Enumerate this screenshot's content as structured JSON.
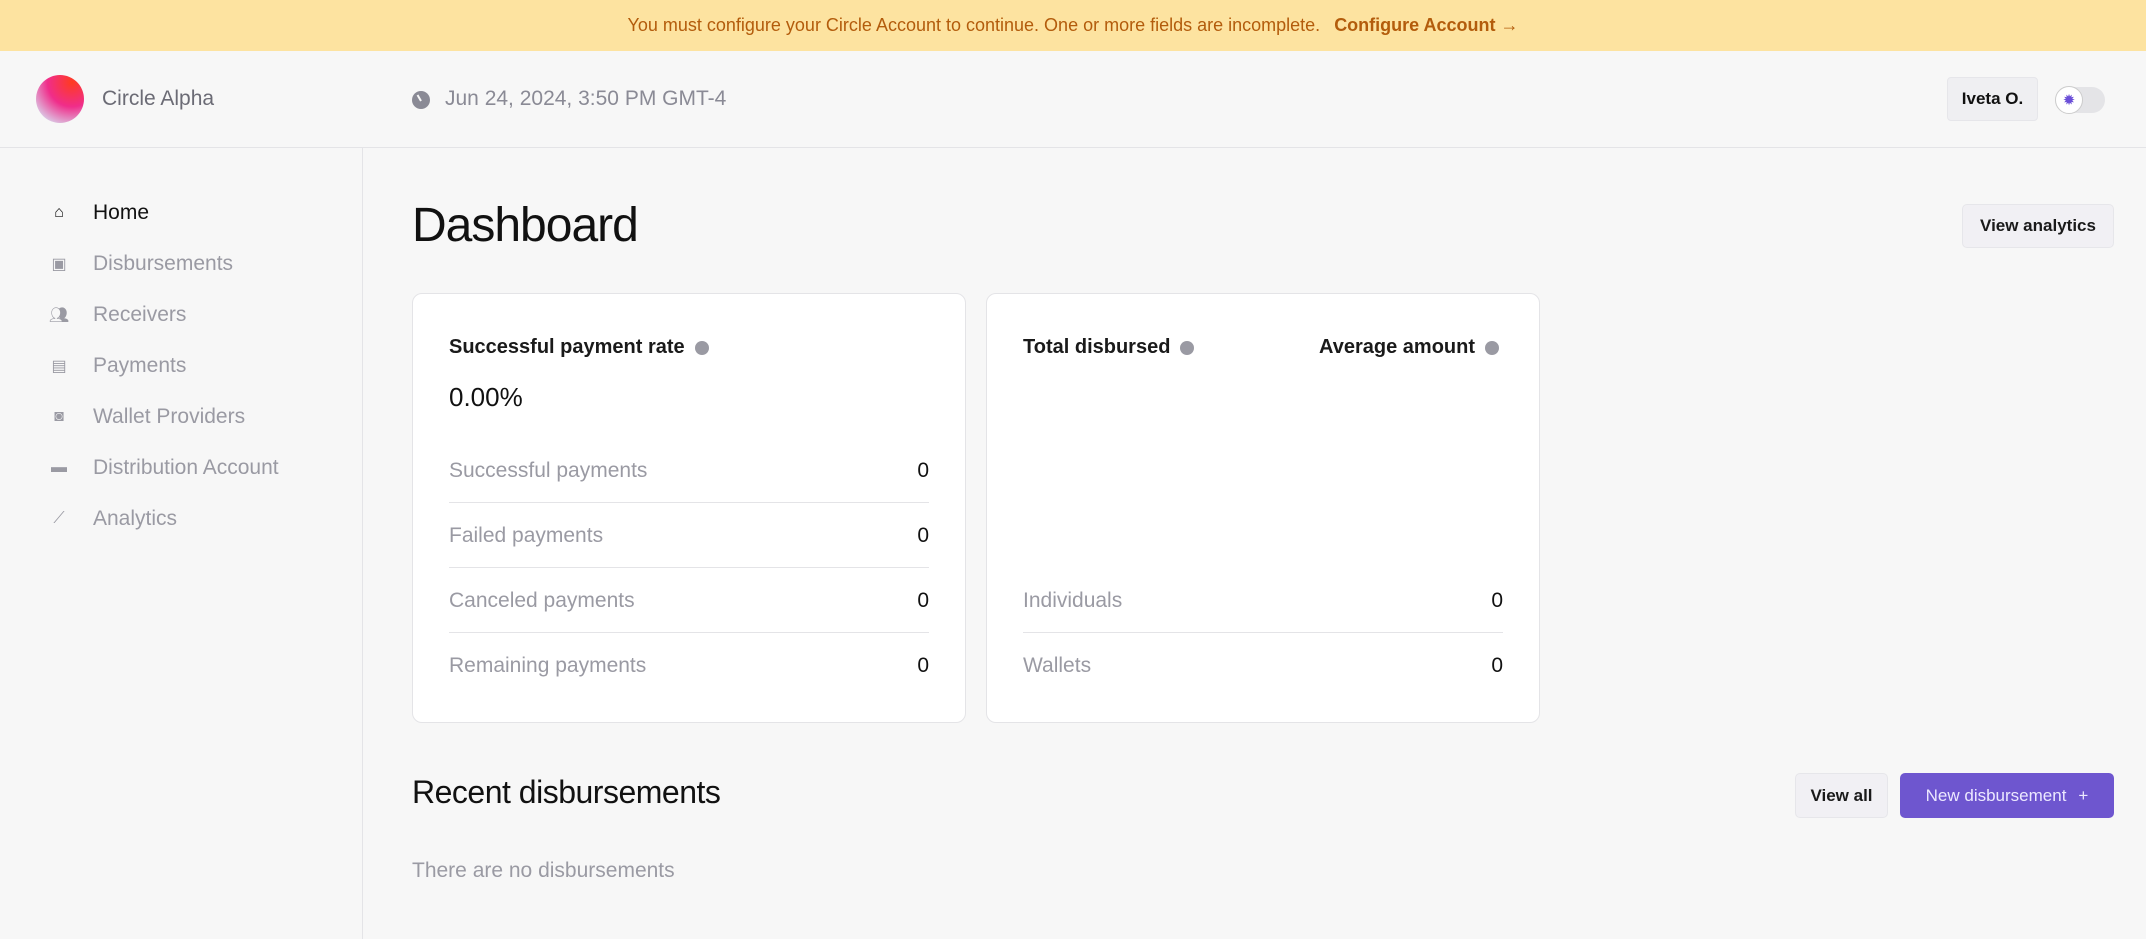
{
  "banner": {
    "message": "You must configure your Circle Account to continue. One or more fields are incomplete.",
    "link": "Configure Account →"
  },
  "header": {
    "org_name": "Circle Alpha",
    "datetime": "Jun 24, 2024, 3:50 PM GMT-4",
    "user": "Iveta O.",
    "theme_icon": "sun-icon"
  },
  "sidebar": {
    "items": [
      {
        "label": "Home",
        "icon": "home-icon",
        "active": true
      },
      {
        "label": "Disbursements",
        "icon": "disbursements-icon"
      },
      {
        "label": "Receivers",
        "icon": "users-icon"
      },
      {
        "label": "Payments",
        "icon": "payments-icon"
      },
      {
        "label": "Wallet Providers",
        "icon": "wallet-icon"
      },
      {
        "label": "Distribution Account",
        "icon": "card-icon"
      },
      {
        "label": "Analytics",
        "icon": "analytics-icon"
      }
    ]
  },
  "main": {
    "title": "Dashboard",
    "view_analytics": "View analytics",
    "payment_card": {
      "title": "Successful payment rate",
      "rate": "0.00%",
      "rows": [
        {
          "label": "Successful payments",
          "value": "0"
        },
        {
          "label": "Failed payments",
          "value": "0"
        },
        {
          "label": "Canceled payments",
          "value": "0"
        },
        {
          "label": "Remaining payments",
          "value": "0"
        }
      ]
    },
    "disbursed_card": {
      "total_title": "Total disbursed",
      "avg_title": "Average amount",
      "rows": [
        {
          "label": "Individuals",
          "value": "0"
        },
        {
          "label": "Wallets",
          "value": "0"
        }
      ]
    },
    "recent": {
      "title": "Recent disbursements",
      "view_all": "View all",
      "new_button": "New disbursement",
      "new_icon": "+",
      "empty": "There are no disbursements"
    },
    "accent": "#6e56cf"
  }
}
